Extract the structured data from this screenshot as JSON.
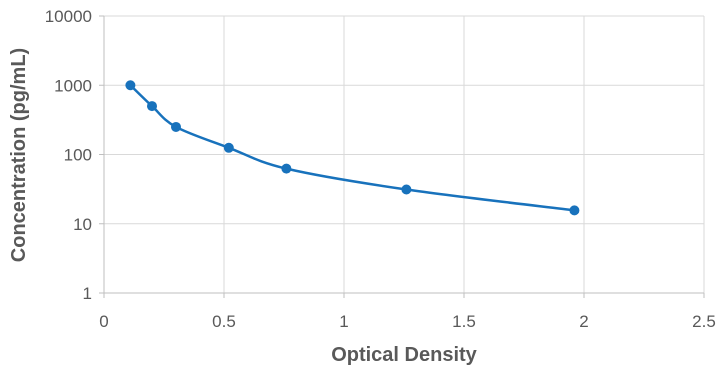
{
  "chart_data": {
    "type": "scatter",
    "title": "",
    "xlabel": "Optical Density",
    "ylabel": "Concentration (pg/mL)",
    "x_scale": "linear",
    "y_scale": "log",
    "xlim": [
      0,
      2.5
    ],
    "ylim": [
      1,
      10000
    ],
    "x_ticks": [
      0,
      0.5,
      1,
      1.5,
      2,
      2.5
    ],
    "x_tick_labels": [
      "0",
      "0.5",
      "1",
      "1.5",
      "2",
      "2.5"
    ],
    "y_ticks": [
      1,
      10,
      100,
      1000,
      10000
    ],
    "y_tick_labels": [
      "1",
      "10",
      "100",
      "1000",
      "10000"
    ],
    "grid": true,
    "legend": "none",
    "series": [
      {
        "x": [
          0.11,
          0.2,
          0.3,
          0.52,
          0.76,
          1.26,
          1.96
        ],
        "y": [
          1000,
          500,
          250,
          125,
          62.5,
          31.25,
          15.6
        ],
        "marker": "circle",
        "line": "smooth",
        "color": "#1872BC"
      }
    ],
    "colors": {
      "series": "#1872BC",
      "grid": "#D9D9D9",
      "axis": "#BFBFBF",
      "text": "#595959"
    }
  }
}
